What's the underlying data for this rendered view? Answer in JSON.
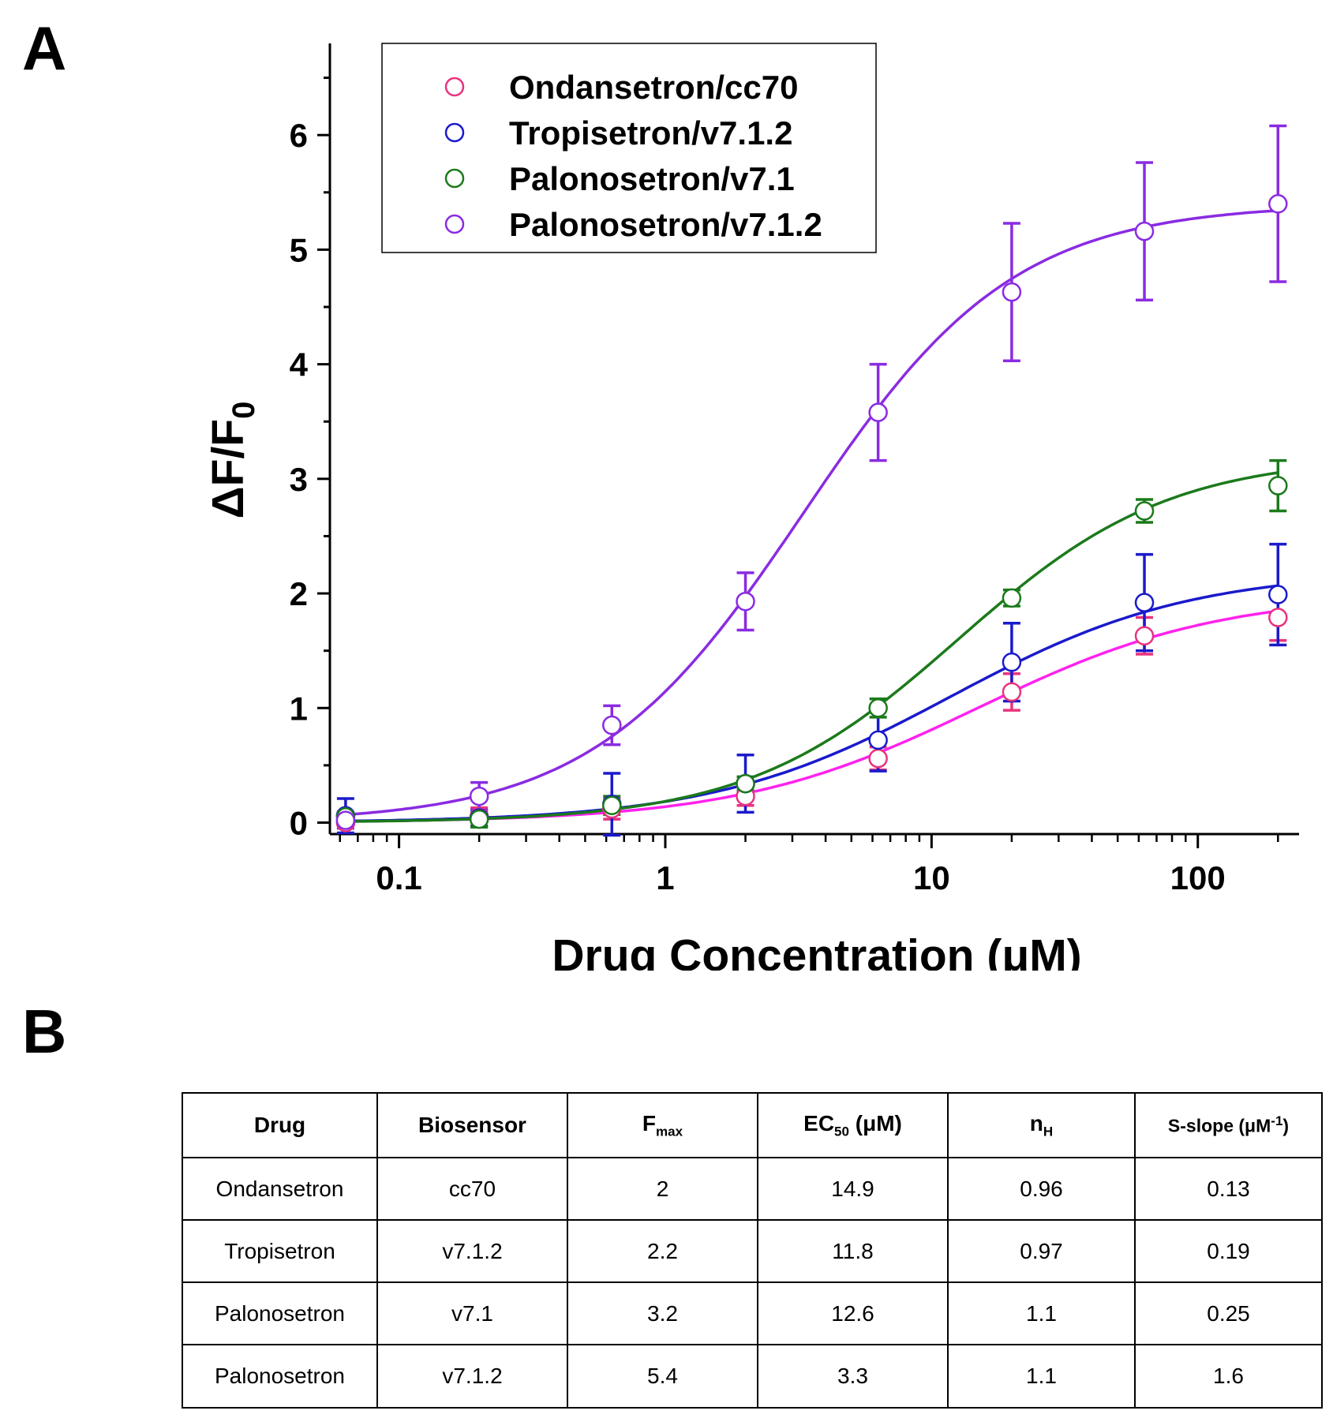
{
  "panels": {
    "a": "A",
    "b": "B"
  },
  "chart_data": {
    "type": "scatter",
    "xlabel": "Drug Concentration (μM)",
    "ylabel_main": "ΔF/F",
    "ylabel_sub": "0",
    "xscale": "log",
    "xlim": [
      0.055,
      240
    ],
    "ylim": [
      -0.1,
      6.8
    ],
    "xticks": [
      0.1,
      1,
      10,
      100
    ],
    "xtick_labels": [
      "0.1",
      "1",
      "10",
      "100"
    ],
    "yticks": [
      0,
      1,
      2,
      3,
      4,
      5,
      6
    ],
    "ytick_labels": [
      "0",
      "1",
      "2",
      "3",
      "4",
      "5",
      "6"
    ],
    "grid": false,
    "legend_position": "top-left",
    "x": [
      0.063,
      0.2,
      0.63,
      2,
      6.3,
      20,
      63,
      200
    ],
    "series": [
      {
        "name": "Ondansetron/cc70",
        "color": "#e8337d",
        "curve_color": "#ff22ee",
        "y": [
          0.0,
          0.05,
          0.12,
          0.23,
          0.56,
          1.14,
          1.63,
          1.79
        ],
        "err": [
          0.03,
          0.08,
          0.09,
          0.08,
          0.1,
          0.16,
          0.16,
          0.2
        ],
        "fit": {
          "fmax": 2.0,
          "ec50": 14.9,
          "nh": 0.96
        }
      },
      {
        "name": "Tropisetron/v7.1.2",
        "color": "#1a1acc",
        "curve_color": "#1a1acc",
        "y": [
          0.06,
          0.04,
          0.16,
          0.34,
          0.72,
          1.4,
          1.92,
          1.99
        ],
        "err": [
          0.15,
          0.07,
          0.27,
          0.25,
          0.27,
          0.34,
          0.42,
          0.44
        ],
        "fit": {
          "fmax": 2.2,
          "ec50": 11.8,
          "nh": 0.97
        }
      },
      {
        "name": "Palonosetron/v7.1",
        "color": "#1b7a1b",
        "curve_color": "#1b7a1b",
        "y": [
          0.05,
          0.03,
          0.15,
          0.34,
          1.0,
          1.96,
          2.72,
          2.94
        ],
        "err": [
          0.04,
          0.07,
          0.08,
          0.06,
          0.08,
          0.07,
          0.1,
          0.22
        ],
        "fit": {
          "fmax": 3.2,
          "ec50": 12.6,
          "nh": 1.1
        }
      },
      {
        "name": "Palonosetron/v7.1.2",
        "color": "#8a2be2",
        "curve_color": "#8a2be2",
        "y": [
          0.02,
          0.23,
          0.85,
          1.93,
          3.58,
          4.63,
          5.16,
          5.4
        ],
        "err": [
          0.07,
          0.12,
          0.17,
          0.25,
          0.42,
          0.6,
          0.6,
          0.68
        ],
        "fit": {
          "fmax": 5.4,
          "ec50": 3.3,
          "nh": 1.1
        }
      }
    ]
  },
  "table": {
    "header": {
      "drug": "Drug",
      "biosensor": "Biosensor",
      "fmax_main": "F",
      "fmax_sub": "max",
      "ec50_main": "EC",
      "ec50_sub": "50",
      "ec50_unit": " (μM)",
      "nh_main": "n",
      "nh_sub": "H",
      "slope_main": "S-slope (μM",
      "slope_sup": "-1",
      "slope_end": ")"
    },
    "rows": [
      {
        "drug": "Ondansetron",
        "biosensor": "cc70",
        "fmax": "2",
        "ec50": "14.9",
        "nh": "0.96",
        "slope": "0.13"
      },
      {
        "drug": "Tropisetron",
        "biosensor": "v7.1.2",
        "fmax": "2.2",
        "ec50": "11.8",
        "nh": "0.97",
        "slope": "0.19"
      },
      {
        "drug": "Palonosetron",
        "biosensor": "v7.1",
        "fmax": "3.2",
        "ec50": "12.6",
        "nh": "1.1",
        "slope": "0.25"
      },
      {
        "drug": "Palonosetron",
        "biosensor": "v7.1.2",
        "fmax": "5.4",
        "ec50": "3.3",
        "nh": "1.1",
        "slope": "1.6"
      }
    ]
  }
}
